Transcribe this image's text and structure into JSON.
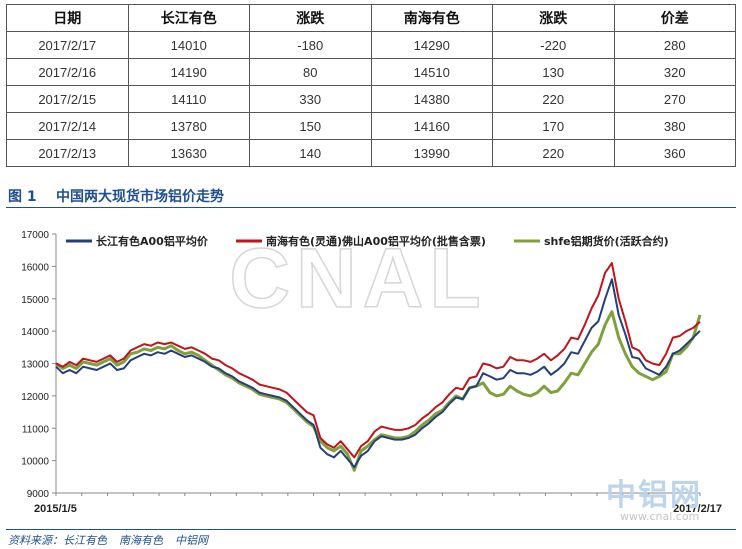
{
  "table": {
    "headers": [
      "日期",
      "长江有色",
      "涨跌",
      "南海有色",
      "涨跌",
      "价差"
    ],
    "rows": [
      [
        "2017/2/17",
        "14010",
        "-180",
        "14290",
        "-220",
        "280"
      ],
      [
        "2017/2/16",
        "14190",
        "80",
        "14510",
        "130",
        "320"
      ],
      [
        "2017/2/15",
        "14110",
        "330",
        "14380",
        "220",
        "270"
      ],
      [
        "2017/2/14",
        "13780",
        "150",
        "14160",
        "170",
        "380"
      ],
      [
        "2017/2/13",
        "13630",
        "140",
        "13990",
        "220",
        "360"
      ]
    ]
  },
  "figure": {
    "number": "图 1",
    "title": "中国两大现货市场铝价走势"
  },
  "watermark": {
    "center": "CNAL",
    "logo": "中铝网",
    "url": "www.cnal.com"
  },
  "source": {
    "label": "资料来源：",
    "items": [
      "长江有色",
      "南海有色",
      "中铝网"
    ]
  },
  "colors": {
    "changjiang": "#243f7a",
    "nanhai": "#c0141c",
    "shfe": "#7fa03a",
    "accent": "#1f4f8f"
  },
  "chart_data": {
    "type": "line",
    "ylim": [
      9000,
      17000
    ],
    "yticks": [
      9000,
      10000,
      11000,
      12000,
      13000,
      14000,
      15000,
      16000,
      17000
    ],
    "x_start_label": "2015/1/5",
    "x_end_label": "2017/2/17",
    "grid": false,
    "legend_position": "top",
    "series": [
      {
        "name": "长江有色A00铝平均价",
        "color": "#243f7a",
        "values": [
          12900,
          12700,
          12800,
          12700,
          12900,
          12850,
          12800,
          12900,
          13000,
          12800,
          12850,
          13100,
          13200,
          13300,
          13250,
          13350,
          13300,
          13400,
          13300,
          13200,
          13250,
          13150,
          13050,
          12900,
          12850,
          12700,
          12600,
          12450,
          12350,
          12250,
          12100,
          12050,
          12000,
          11950,
          11850,
          11650,
          11450,
          11250,
          11100,
          10400,
          10200,
          10100,
          10300,
          10050,
          9800,
          10150,
          10300,
          10600,
          10750,
          10700,
          10650,
          10650,
          10700,
          10800,
          11000,
          11150,
          11350,
          11500,
          11750,
          11950,
          11900,
          12250,
          12300,
          12700,
          12600,
          12500,
          12550,
          12800,
          12700,
          12700,
          12650,
          12750,
          12900,
          12650,
          12800,
          13000,
          13350,
          13300,
          13700,
          14100,
          14300,
          15000,
          15600,
          14500,
          13900,
          13200,
          13150,
          12850,
          12750,
          12650,
          12900,
          13300,
          13400,
          13600,
          13800,
          14010
        ]
      },
      {
        "name": "南海有色(灵通)佛山A00铝平均价(批售含票)",
        "color": "#c0141c",
        "values": [
          13000,
          12900,
          13050,
          12950,
          13150,
          13100,
          13050,
          13150,
          13250,
          13050,
          13150,
          13400,
          13500,
          13600,
          13550,
          13650,
          13600,
          13650,
          13550,
          13450,
          13500,
          13400,
          13300,
          13150,
          13100,
          12950,
          12850,
          12700,
          12600,
          12500,
          12350,
          12300,
          12250,
          12200,
          12100,
          11900,
          11700,
          11500,
          11400,
          10700,
          10500,
          10400,
          10600,
          10350,
          10100,
          10450,
          10600,
          10900,
          11050,
          11000,
          10950,
          10950,
          11000,
          11100,
          11300,
          11450,
          11650,
          11800,
          12050,
          12250,
          12200,
          12550,
          12600,
          13000,
          12950,
          12850,
          12900,
          13200,
          13100,
          13100,
          13050,
          13150,
          13300,
          13100,
          13250,
          13450,
          13800,
          13750,
          14200,
          14700,
          15100,
          15800,
          16100,
          15000,
          14300,
          13500,
          13400,
          13100,
          13000,
          12950,
          13300,
          13800,
          13850,
          14000,
          14100,
          14290
        ]
      },
      {
        "name": "shfe铝期货价(活跃合约)",
        "color": "#7fa03a",
        "values": [
          13000,
          12850,
          12950,
          12850,
          13050,
          13000,
          12950,
          13050,
          13150,
          12950,
          13050,
          13300,
          13350,
          13450,
          13400,
          13500,
          13450,
          13550,
          13400,
          13300,
          13350,
          13250,
          13100,
          12950,
          12800,
          12650,
          12550,
          12400,
          12300,
          12200,
          12050,
          12000,
          11950,
          11900,
          11800,
          11600,
          11400,
          11200,
          11050,
          10600,
          10400,
          10300,
          10450,
          10200,
          9700,
          10300,
          10450,
          10650,
          10800,
          10750,
          10700,
          10700,
          10750,
          10900,
          11100,
          11250,
          11450,
          11550,
          11800,
          12000,
          11900,
          12250,
          12300,
          12400,
          12100,
          12000,
          12050,
          12300,
          12150,
          12050,
          12000,
          12100,
          12300,
          12100,
          12150,
          12400,
          12700,
          12650,
          13000,
          13350,
          13600,
          14200,
          14600,
          13800,
          13300,
          12900,
          12700,
          12600,
          12500,
          12600,
          12750,
          13300,
          13300,
          13500,
          13800,
          14500
        ]
      }
    ]
  }
}
